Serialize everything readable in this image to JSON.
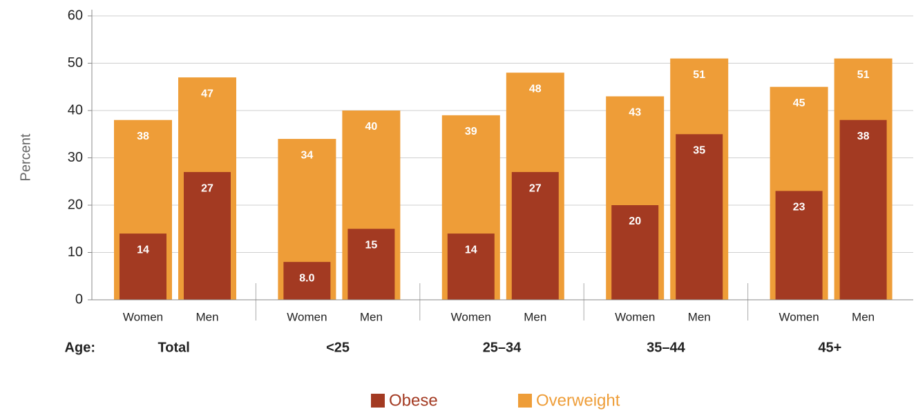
{
  "chart_data": {
    "type": "bar",
    "ylabel": "Percent",
    "group_label": "Age:",
    "groups": [
      "Total",
      "<25",
      "25–34",
      "35–44",
      "45+"
    ],
    "categories": [
      "Women",
      "Men",
      "Women",
      "Men",
      "Women",
      "Men",
      "Women",
      "Men",
      "Women",
      "Men"
    ],
    "series": [
      {
        "name": "Overweight",
        "color": "#ee9d38",
        "values": [
          38,
          47,
          34,
          40,
          39,
          48,
          43,
          51,
          45,
          51
        ]
      },
      {
        "name": "Obese",
        "color": "#a33a22",
        "values": [
          14,
          27,
          8,
          15,
          14,
          27,
          20,
          35,
          23,
          38
        ],
        "value_labels": [
          "14",
          "27",
          "8.0",
          "15",
          "14",
          "27",
          "20",
          "35",
          "23",
          "38"
        ]
      }
    ],
    "ylim": [
      0,
      60
    ],
    "yticks": [
      0,
      10,
      20,
      30,
      40,
      50,
      60
    ],
    "grid": true
  }
}
